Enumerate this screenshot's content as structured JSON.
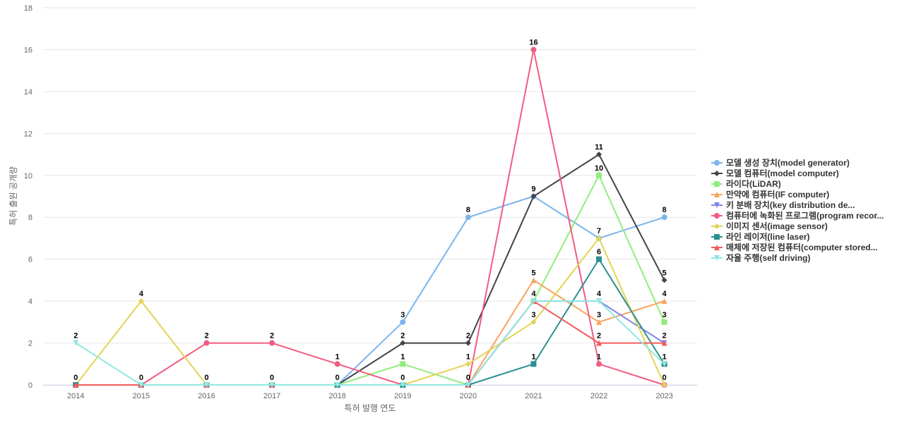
{
  "chart_data": {
    "type": "line",
    "xlabel": "특허 발행 연도",
    "ylabel": "특허 출원 공개량",
    "ylim": [
      0,
      18
    ],
    "yticks": [
      0,
      2,
      4,
      6,
      8,
      10,
      12,
      14,
      16,
      18
    ],
    "categories": [
      "2014",
      "2015",
      "2016",
      "2017",
      "2018",
      "2019",
      "2020",
      "2021",
      "2022",
      "2023"
    ],
    "grid": true,
    "legend_position": "right",
    "series": [
      {
        "name": "모델 생성 장치(model generator)",
        "color": "#7cb5ec",
        "marker": "circle",
        "values": [
          null,
          null,
          null,
          null,
          0,
          3,
          8,
          9,
          7,
          8
        ],
        "labels": [
          false,
          false,
          false,
          false,
          false,
          true,
          true,
          false,
          false,
          true
        ]
      },
      {
        "name": "모델 컴퓨터(model computer)",
        "color": "#434348",
        "marker": "diamond",
        "values": [
          null,
          null,
          null,
          null,
          0,
          2,
          2,
          9,
          11,
          5
        ],
        "labels": [
          false,
          false,
          false,
          false,
          false,
          true,
          true,
          true,
          true,
          true
        ]
      },
      {
        "name": "라이다(LiDAR)",
        "color": "#90ed7d",
        "marker": "square",
        "values": [
          null,
          null,
          null,
          null,
          0,
          1,
          0,
          4,
          10,
          3
        ],
        "labels": [
          false,
          false,
          false,
          false,
          false,
          true,
          false,
          false,
          true,
          true
        ]
      },
      {
        "name": "만약에 컴퓨터(IF computer)",
        "color": "#f7a35c",
        "marker": "triangle",
        "values": [
          null,
          null,
          null,
          null,
          null,
          null,
          0,
          5,
          3,
          4
        ],
        "labels": [
          false,
          false,
          false,
          false,
          false,
          false,
          false,
          true,
          true,
          true
        ]
      },
      {
        "name": "키 분배 장치(key distribution de...",
        "color": "#8085e9",
        "marker": "triangle-down",
        "values": [
          null,
          null,
          null,
          null,
          null,
          null,
          0,
          4,
          4,
          2
        ],
        "labels": [
          false,
          false,
          false,
          false,
          false,
          false,
          false,
          false,
          false,
          false
        ]
      },
      {
        "name": "컴퓨터에 녹화된 프로그램(program recor...",
        "color": "#f15c80",
        "marker": "circle",
        "values": [
          0,
          0,
          2,
          2,
          1,
          0,
          0,
          16,
          1,
          0
        ],
        "labels": [
          false,
          false,
          true,
          true,
          true,
          true,
          false,
          true,
          true,
          false
        ]
      },
      {
        "name": "이미지 센서(image sensor)",
        "color": "#e4d354",
        "marker": "diamond",
        "values": [
          0,
          4,
          0,
          0,
          0,
          0,
          1,
          3,
          7,
          0
        ],
        "labels": [
          false,
          true,
          false,
          false,
          false,
          false,
          true,
          true,
          true,
          true
        ]
      },
      {
        "name": "라인 레이저(line laser)",
        "color": "#2b908f",
        "marker": "square",
        "values": [
          0,
          0,
          0,
          0,
          0,
          0,
          0,
          1,
          6,
          1
        ],
        "labels": [
          true,
          false,
          false,
          false,
          false,
          false,
          false,
          true,
          true,
          false
        ]
      },
      {
        "name": "매체에 저장된 컴퓨터(computer stored...",
        "color": "#f45b5b",
        "marker": "triangle",
        "values": [
          0,
          0,
          0,
          0,
          null,
          null,
          0,
          4,
          2,
          2
        ],
        "labels": [
          false,
          false,
          false,
          false,
          false,
          false,
          false,
          true,
          true,
          true
        ]
      },
      {
        "name": "자율 주행(self driving)",
        "color": "#91e8e1",
        "marker": "triangle-down",
        "values": [
          2,
          0,
          0,
          0,
          0,
          0,
          0,
          4,
          4,
          1
        ],
        "labels": [
          true,
          true,
          true,
          true,
          true,
          false,
          true,
          false,
          true,
          true
        ]
      }
    ]
  }
}
